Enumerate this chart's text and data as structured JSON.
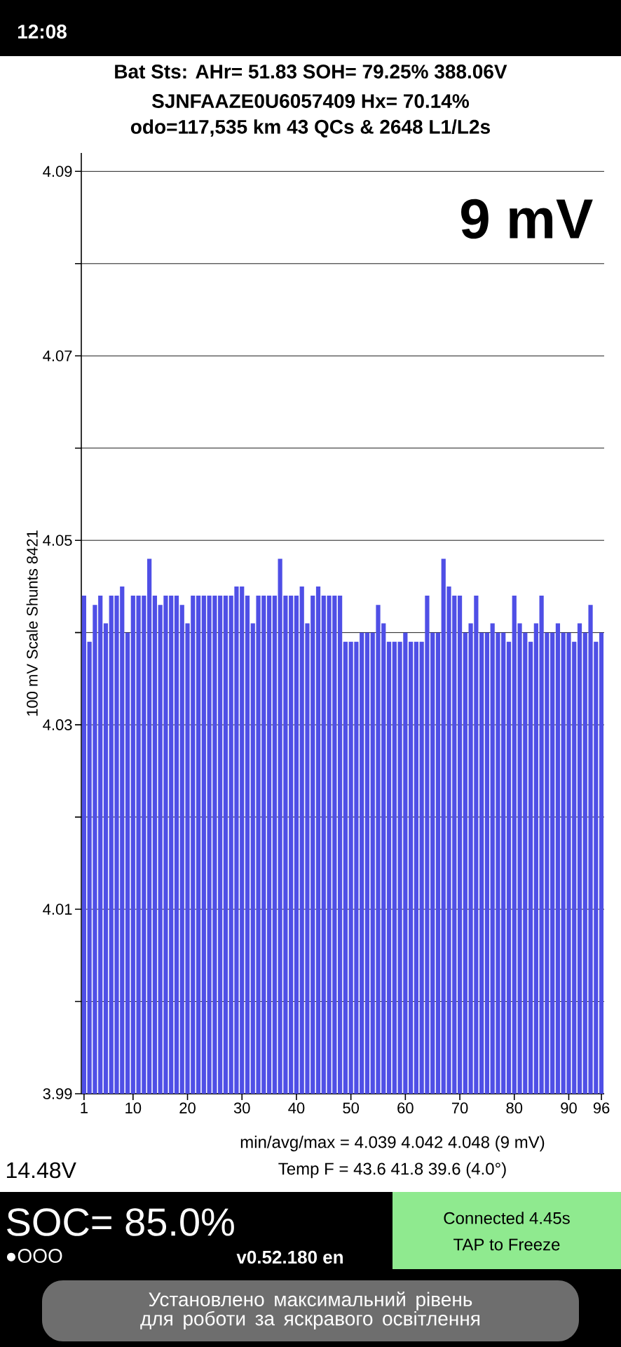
{
  "chart_data": {
    "type": "bar",
    "title": "Bat Sts:  AHr= 51.83  SOH= 79.25%  388.06V",
    "subtitle": "SJNFAAZE0U6057409   Hx= 70.14%",
    "ylabel": "100 mV Scale  Shunts 8421",
    "x": [
      1,
      2,
      3,
      4,
      5,
      6,
      7,
      8,
      9,
      10,
      11,
      12,
      13,
      14,
      15,
      16,
      17,
      18,
      19,
      20,
      21,
      22,
      23,
      24,
      25,
      26,
      27,
      28,
      29,
      30,
      31,
      32,
      33,
      34,
      35,
      36,
      37,
      38,
      39,
      40,
      41,
      42,
      43,
      44,
      45,
      46,
      47,
      48,
      49,
      50,
      51,
      52,
      53,
      54,
      55,
      56,
      57,
      58,
      59,
      60,
      61,
      62,
      63,
      64,
      65,
      66,
      67,
      68,
      69,
      70,
      71,
      72,
      73,
      74,
      75,
      76,
      77,
      78,
      79,
      80,
      81,
      82,
      83,
      84,
      85,
      86,
      87,
      88,
      89,
      90,
      91,
      92,
      93,
      94,
      95,
      96
    ],
    "values": [
      4.044,
      4.039,
      4.043,
      4.044,
      4.041,
      4.044,
      4.044,
      4.045,
      4.04,
      4.044,
      4.044,
      4.044,
      4.048,
      4.044,
      4.043,
      4.044,
      4.044,
      4.044,
      4.043,
      4.041,
      4.044,
      4.044,
      4.044,
      4.044,
      4.044,
      4.044,
      4.044,
      4.044,
      4.045,
      4.045,
      4.044,
      4.041,
      4.044,
      4.044,
      4.044,
      4.044,
      4.048,
      4.044,
      4.044,
      4.044,
      4.045,
      4.041,
      4.044,
      4.045,
      4.044,
      4.044,
      4.044,
      4.044,
      4.039,
      4.039,
      4.039,
      4.04,
      4.04,
      4.04,
      4.043,
      4.041,
      4.039,
      4.039,
      4.039,
      4.04,
      4.039,
      4.039,
      4.039,
      4.044,
      4.04,
      4.04,
      4.048,
      4.045,
      4.044,
      4.044,
      4.04,
      4.041,
      4.044,
      4.04,
      4.04,
      4.041,
      4.04,
      4.04,
      4.039,
      4.044,
      4.041,
      4.04,
      4.039,
      4.041,
      4.044,
      4.04,
      4.04,
      4.041,
      4.04,
      4.04,
      4.039,
      4.041,
      4.04,
      4.043,
      4.039,
      4.04
    ],
    "color": "#4f4fe6",
    "xlim": [
      0.5,
      96.5
    ],
    "xticks": [
      1,
      10,
      20,
      30,
      40,
      50,
      60,
      70,
      80,
      90,
      96
    ],
    "ylim": [
      3.99,
      4.092
    ],
    "yticks": [
      3.99,
      {
        "value": 4.0,
        "label": null
      },
      4.01,
      {
        "value": 4.02,
        "label": null
      },
      4.03,
      {
        "value": 4.04,
        "label": null
      },
      4.05,
      {
        "value": 4.06,
        "label": null
      },
      4.07,
      {
        "value": 4.08,
        "label": null
      },
      4.09
    ],
    "grid": "y",
    "annotations": [
      "odo=117,535 km 43 QCs & 2648 L1/L2s",
      "9 mV",
      "min/avg/max = 4.039 4.042 4.048  (9 mV)",
      "Temp F = 43.6  41.8  39.6  (4.0°)",
      "14.48V",
      "SOC= 85.0%",
      "●OOO",
      "v0.52.180 en",
      "Connected 4.45s",
      "TAP to Freeze",
      "12:08",
      "Установлено максимальний рівень для роботи за яскравого освітлення"
    ]
  }
}
